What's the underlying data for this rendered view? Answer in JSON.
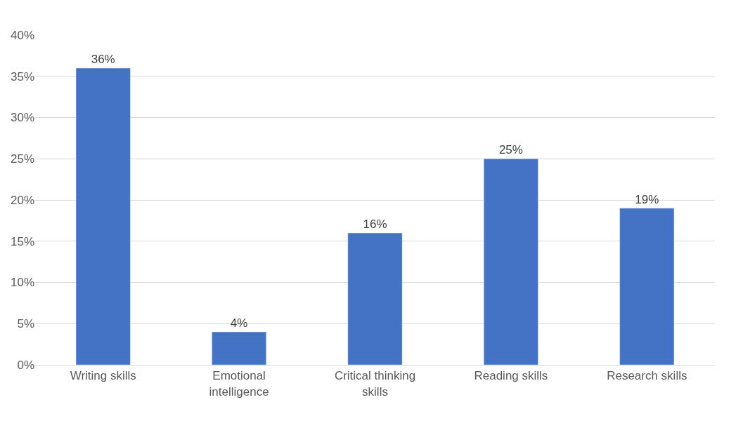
{
  "chart_data": {
    "type": "bar",
    "categories": [
      "Writing skills",
      "Emotional intelligence",
      "Critical thinking skills",
      "Reading skills",
      "Research skills"
    ],
    "values": [
      36,
      4,
      16,
      25,
      19
    ],
    "value_labels": [
      "36%",
      "4%",
      "16%",
      "25%",
      "19%"
    ],
    "color": "#4472c4",
    "ylim": [
      0,
      40
    ],
    "yticks": [
      {
        "value": 0,
        "label": "0%"
      },
      {
        "value": 5,
        "label": "5%"
      },
      {
        "value": 10,
        "label": "10%"
      },
      {
        "value": 15,
        "label": "15%"
      },
      {
        "value": 20,
        "label": "20%"
      },
      {
        "value": 25,
        "label": "25%"
      },
      {
        "value": 30,
        "label": "30%"
      },
      {
        "value": 35,
        "label": "35%"
      },
      {
        "value": 40,
        "label": "40%"
      }
    ],
    "grid": "y"
  }
}
